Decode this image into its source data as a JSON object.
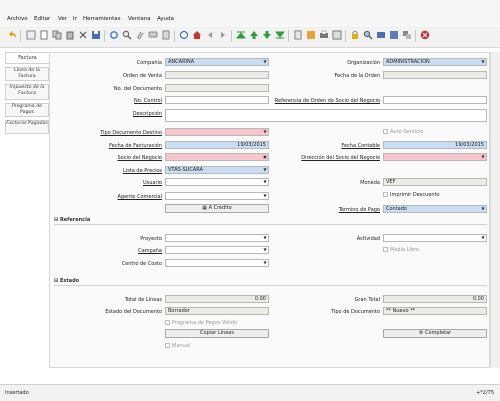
{
  "menu": {
    "items": [
      {
        "label": "Archivo"
      },
      {
        "label": "Editar"
      },
      {
        "label": "Ver"
      },
      {
        "label": "Ir"
      },
      {
        "label": "Herramientas"
      },
      {
        "label": "Ventana"
      },
      {
        "label": "Ayuda"
      }
    ]
  },
  "tabs": {
    "factura": "Factura",
    "linea": "Línea de la Factura",
    "impuesto": "Impuesto de la Factura",
    "programa": "Programa de Pagos",
    "facturas_pagadas": "Facturas Pagadas"
  },
  "form": {
    "compania": {
      "label": "Compañía",
      "value": "ANCARINA"
    },
    "organizacion": {
      "label": "Organización",
      "value": "ADMINISTRACIÓN"
    },
    "orden_venta": {
      "label": "Orden de Venta",
      "value": ""
    },
    "fecha_orden": {
      "label": "Fecha de la Orden",
      "value": ""
    },
    "no_documento": {
      "label": "No. del Documento",
      "value": ""
    },
    "no_control": {
      "label": "No. Control",
      "value": ""
    },
    "ref_orden": {
      "label": "Referencia de Orden de Socio del Negocio",
      "value": ""
    },
    "descripcion": {
      "label": "Descripción",
      "value": ""
    },
    "tipo_doc": {
      "label": "Tipo Documento Destino",
      "value": ""
    },
    "auto_servicio": {
      "label": "Auto-Servicio"
    },
    "fecha_fact": {
      "label": "Fecha de Facturación",
      "value": "19/03/2015"
    },
    "fecha_contable": {
      "label": "Fecha Contable",
      "value": "19/03/2015"
    },
    "socio": {
      "label": "Socio del Negocio",
      "value": ""
    },
    "direccion": {
      "label": "Dirección del Socio del Negocio",
      "value": ""
    },
    "lista_precios": {
      "label": "Lista de Precios",
      "value": "VTAS-SUCARA"
    },
    "usuario": {
      "label": "Usuario",
      "value": ""
    },
    "moneda": {
      "label": "Moneda",
      "value": "VEF"
    },
    "imprimir": {
      "label": "Imprimir Descuento"
    },
    "agente": {
      "label": "Agente Comercial",
      "value": ""
    },
    "credito": {
      "label": "A Crédito"
    },
    "termino": {
      "label": "Término de Pago",
      "value": "Contado"
    }
  },
  "referencia": {
    "title": "Referencia",
    "proyecto": {
      "label": "Proyecto",
      "value": ""
    },
    "actividad": {
      "label": "Actividad",
      "value": ""
    },
    "campana": {
      "label": "Campaña",
      "value": ""
    },
    "media_libro": {
      "label": "Media Libro"
    },
    "centro": {
      "label": "Centro de Costo",
      "value": ""
    }
  },
  "estado": {
    "title": "Estado",
    "total_lineas": {
      "label": "Total de Líneas",
      "value": "0.00"
    },
    "gran_total": {
      "label": "Gran Total",
      "value": "0.00"
    },
    "estado_doc": {
      "label": "Estado del Documento",
      "value": "Borrador"
    },
    "tipo_doc": {
      "label": "Tipo de Documento",
      "value": "** Nuevo **"
    },
    "programa_pagos": {
      "label": "Programa de Pagos Válido"
    },
    "copiar": {
      "label": "Copiar Líneas"
    },
    "completar": {
      "label": "Completar"
    },
    "manual": {
      "label": "Manual"
    }
  },
  "status": {
    "text": "Insertado",
    "record": "+*2/75"
  },
  "colors": {
    "mandatory": "#f7c6cc",
    "lookup": "#c9ddf4",
    "readonly": "#ecece6"
  }
}
